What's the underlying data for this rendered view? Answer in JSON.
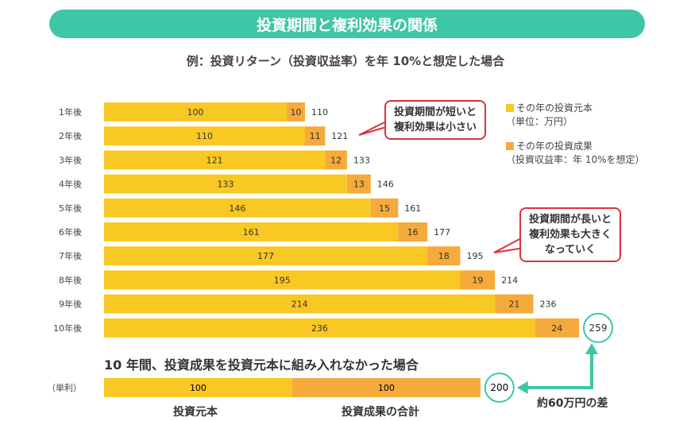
{
  "chart_data": {
    "type": "bar",
    "stacked": true,
    "orientation": "horizontal",
    "title": "投資期間と複利効果の関係",
    "subtitle": "例：投資リターン（投資収益率）を年 10%と想定した場合",
    "categories": [
      "1年後",
      "2年後",
      "3年後",
      "4年後",
      "5年後",
      "6年後",
      "7年後",
      "8年後",
      "9年後",
      "10年後"
    ],
    "series": [
      {
        "name": "その年の投資元本",
        "note": "（単位：万円）",
        "color": "#f9c823",
        "values": [
          100,
          110,
          121,
          133,
          146,
          161,
          177,
          195,
          214,
          236
        ]
      },
      {
        "name": "その年の投資成果",
        "note": "（投資収益率：年 10%を想定）",
        "color": "#f5aa3c",
        "values": [
          10,
          11,
          12,
          13,
          15,
          16,
          18,
          19,
          21,
          24
        ]
      }
    ],
    "totals": [
      110,
      121,
      133,
      146,
      161,
      177,
      195,
      214,
      236,
      259
    ],
    "annotations": [
      "投資期間が短いと\n複利効果は小さい",
      "投資期間が長いと\n複利効果も大きく\nなっていく"
    ],
    "simple": {
      "title": "10 年間、投資成果を投資元本に組み入れなかった場合",
      "category": "（単利）",
      "values": [
        100,
        100
      ],
      "labels": [
        "投資元本",
        "投資成果の合計"
      ],
      "total": 200,
      "difference_label": "約60万円の差"
    },
    "accent": "#3fc6a6",
    "callout_border": "#d9343b"
  }
}
